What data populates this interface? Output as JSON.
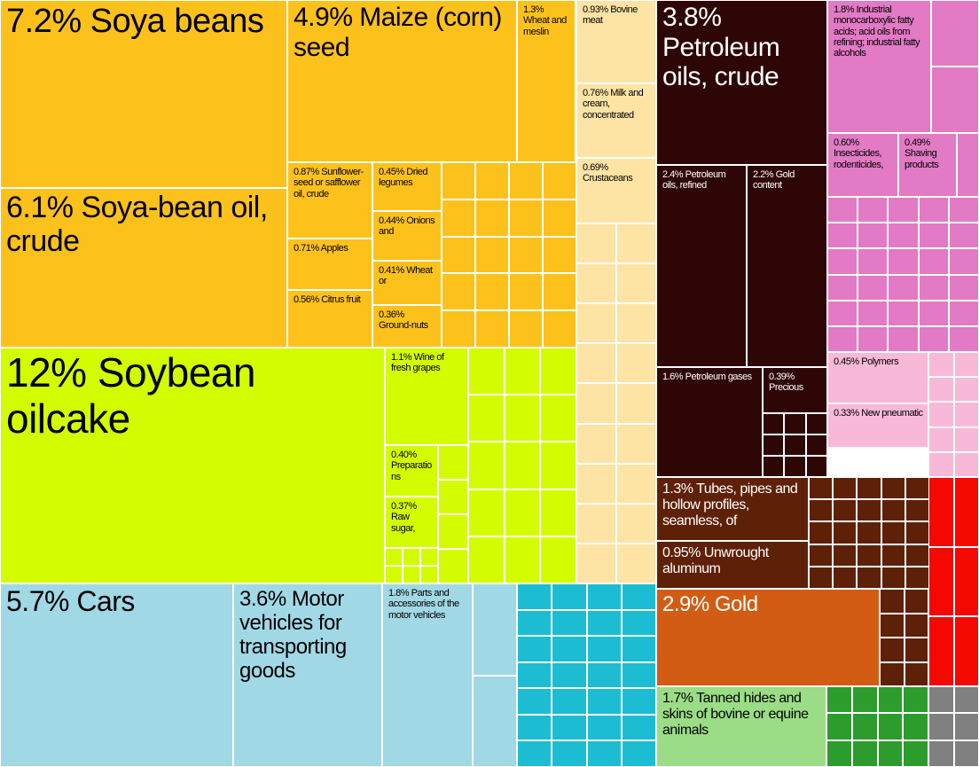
{
  "colors": {
    "vegetable": "#fdc11c",
    "foodstuffs": "#d4fc00",
    "animal": "#fde4a5",
    "mineral": "#2e0605",
    "chemicals": "#e27ac5",
    "plastics": "#f8b9d8",
    "metals": "#5e2108",
    "precious": "#d25c13",
    "hides": "#9bdc86",
    "transport": "#a1d8e6",
    "machines": "#1cbdd2",
    "textiles": "#2c9c2c",
    "stone": "#808080",
    "misc": "#f50800"
  },
  "chart_data": {
    "type": "treemap",
    "title": "",
    "unit": "% of exports",
    "items": [
      {
        "id": "soya-beans",
        "label": "7.2% Soya beans",
        "value": 7.2,
        "group": "vegetable"
      },
      {
        "id": "maize-seed",
        "label": "4.9% Maize (corn) seed",
        "value": 4.9,
        "group": "vegetable"
      },
      {
        "id": "wheat-meslin",
        "label": "1.3% Wheat and meslin",
        "value": 1.3,
        "group": "vegetable"
      },
      {
        "id": "soya-bean-oil",
        "label": "6.1% Soya-bean oil, crude",
        "value": 6.1,
        "group": "vegetable"
      },
      {
        "id": "sunflower-oil",
        "label": "0.87% Sunflower-seed or safflower oil, crude",
        "value": 0.87,
        "group": "vegetable"
      },
      {
        "id": "dried-legumes",
        "label": "0.45% Dried legumes",
        "value": 0.45,
        "group": "vegetable"
      },
      {
        "id": "apples",
        "label": "0.71% Apples",
        "value": 0.71,
        "group": "vegetable"
      },
      {
        "id": "onions",
        "label": "0.44% Onions and",
        "value": 0.44,
        "group": "vegetable"
      },
      {
        "id": "wheat-or",
        "label": "0.41% Wheat or",
        "value": 0.41,
        "group": "vegetable"
      },
      {
        "id": "citrus",
        "label": "0.56% Citrus fruit",
        "value": 0.56,
        "group": "vegetable"
      },
      {
        "id": "ground-nuts",
        "label": "0.36% Ground-nuts",
        "value": 0.36,
        "group": "vegetable"
      },
      {
        "id": "soybean-oilcake",
        "label": "12% Soybean oilcake",
        "value": 12,
        "group": "foodstuffs"
      },
      {
        "id": "wine",
        "label": "1.1% Wine of fresh grapes",
        "value": 1.1,
        "group": "foodstuffs"
      },
      {
        "id": "preparations",
        "label": "0.40% Preparations",
        "value": 0.4,
        "group": "foodstuffs"
      },
      {
        "id": "raw-sugar",
        "label": "0.37% Raw sugar,",
        "value": 0.37,
        "group": "foodstuffs"
      },
      {
        "id": "bovine-meat",
        "label": "0.93% Bovine meat",
        "value": 0.93,
        "group": "animal"
      },
      {
        "id": "milk-cream",
        "label": "0.76% Milk and cream, concentrated",
        "value": 0.76,
        "group": "animal"
      },
      {
        "id": "crustaceans",
        "label": "0.69% Crustaceans",
        "value": 0.69,
        "group": "animal"
      },
      {
        "id": "petroleum-crude",
        "label": "3.8% Petroleum oils, crude",
        "value": 3.8,
        "group": "mineral"
      },
      {
        "id": "petroleum-refined",
        "label": "2.4% Petroleum oils, refined",
        "value": 2.4,
        "group": "mineral"
      },
      {
        "id": "gold-content",
        "label": "2.2% Gold content",
        "value": 2.2,
        "group": "mineral"
      },
      {
        "id": "petroleum-gases",
        "label": "1.6% Petroleum gases",
        "value": 1.6,
        "group": "mineral"
      },
      {
        "id": "precious",
        "label": "0.39% Precious",
        "value": 0.39,
        "group": "mineral"
      },
      {
        "id": "fatty-acids",
        "label": "1.8% Industrial monocarboxylic fatty acids; acid oils from refining; industrial fatty alcohols",
        "value": 1.8,
        "group": "chemicals"
      },
      {
        "id": "insecticides",
        "label": "0.60% Insecticides, rodenticides,",
        "value": 0.6,
        "group": "chemicals"
      },
      {
        "id": "shaving",
        "label": "0.49% Shaving products",
        "value": 0.49,
        "group": "chemicals"
      },
      {
        "id": "polymers",
        "label": "0.45% Polymers",
        "value": 0.45,
        "group": "plastics"
      },
      {
        "id": "new-pneumatic",
        "label": "0.33% New pneumatic",
        "value": 0.33,
        "group": "plastics"
      },
      {
        "id": "tubes-pipes",
        "label": "1.3% Tubes, pipes and hollow profiles, seamless, of",
        "value": 1.3,
        "group": "metals"
      },
      {
        "id": "aluminium",
        "label": "0.95% Unwrought aluminum",
        "value": 0.95,
        "group": "metals"
      },
      {
        "id": "gold",
        "label": "2.9% Gold",
        "value": 2.9,
        "group": "precious"
      },
      {
        "id": "tanned-hides",
        "label": "1.7% Tanned hides and skins of bovine or equine animals",
        "value": 1.7,
        "group": "hides"
      },
      {
        "id": "cars",
        "label": "5.7% Cars",
        "value": 5.7,
        "group": "transport"
      },
      {
        "id": "goods-vehicles",
        "label": "3.6% Motor vehicles for transporting goods",
        "value": 3.6,
        "group": "transport"
      },
      {
        "id": "motor-parts",
        "label": "1.8% Parts and accessories of the motor vehicles",
        "value": 1.8,
        "group": "transport"
      }
    ]
  }
}
